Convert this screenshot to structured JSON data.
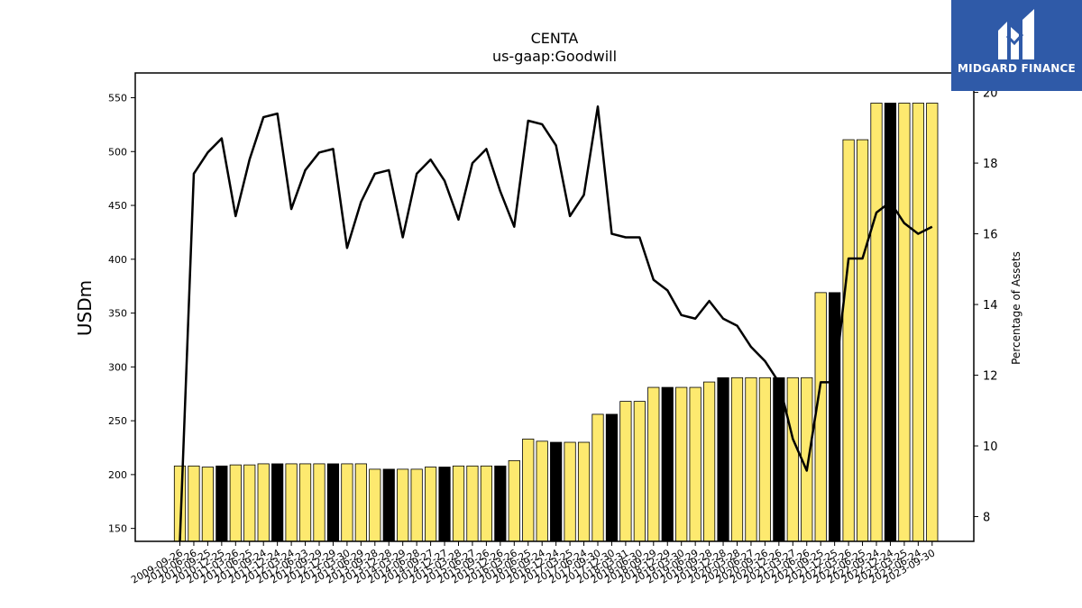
{
  "logo": {
    "text": "MIDGARD FINANCE",
    "icon": "midgard-logo-icon",
    "bg": "#2f5aa8"
  },
  "chart_data": {
    "type": "bar",
    "title": "CENTA",
    "subtitle": "us-gaap:Goodwill",
    "ylabel": "USDm",
    "y2label": "Percentage of Assets",
    "ylim": [
      138,
      573
    ],
    "y2lim": [
      7.3,
      20.55
    ],
    "yticks": [
      150,
      200,
      250,
      300,
      350,
      400,
      450,
      500,
      550
    ],
    "y2ticks": [
      8,
      10,
      12,
      14,
      16,
      18,
      20
    ],
    "bar_colors": {
      "normal": "#fde96f",
      "highlight": "#000000"
    },
    "categories": [
      "2009-09-26",
      "2010-06-26",
      "2010-09-25",
      "2010-12-25",
      "2011-03-26",
      "2011-06-25",
      "2011-09-24",
      "2011-12-24",
      "2012-03-24",
      "2012-06-23",
      "2012-09-29",
      "2012-12-29",
      "2013-03-30",
      "2013-06-29",
      "2013-09-28",
      "2013-12-28",
      "2014-03-29",
      "2014-06-28",
      "2014-09-27",
      "2014-12-27",
      "2015-03-28",
      "2015-06-27",
      "2015-09-26",
      "2015-12-26",
      "2016-03-26",
      "2016-06-25",
      "2016-09-24",
      "2016-12-24",
      "2017-03-25",
      "2017-06-24",
      "2017-09-30",
      "2017-12-30",
      "2018-03-31",
      "2018-06-30",
      "2018-09-29",
      "2018-12-29",
      "2019-03-30",
      "2019-06-29",
      "2019-09-28",
      "2019-12-28",
      "2020-03-28",
      "2020-06-27",
      "2020-09-26",
      "2020-12-26",
      "2021-03-27",
      "2021-06-26",
      "2021-09-25",
      "2021-12-25",
      "2022-03-26",
      "2022-06-25",
      "2022-09-24",
      "2022-12-24",
      "2023-03-25",
      "2023-06-24",
      "2023-09-30"
    ],
    "x_tick_labels": [
      "2009-09-26",
      "2010-06-26",
      "2010-09-25",
      "2010-12-25",
      "2011-03-26",
      "2011-06-25",
      "2011-09-24",
      "2011-12-24",
      "2012-03-24",
      "2012-06-23",
      "2012-09-29",
      "2012-12-29",
      "2013-03-30",
      "2013-06-29",
      "2013-09-28",
      "2013-12-28",
      "2014-03-29",
      "2014-06-28",
      "2014-09-27",
      "2014-12-27",
      "2015-03-28",
      "2015-06-27",
      "2015-09-26",
      "2015-12-26",
      "2016-03-26",
      "2016-06-25",
      "2016-09-24",
      "2016-12-24",
      "2017-03-25",
      "2017-06-24",
      "2017-09-30",
      "2017-12-30",
      "2018-03-31",
      "2018-06-30",
      "2018-09-29",
      "2018-12-29",
      "2019-03-30",
      "2019-06-29",
      "2019-09-28",
      "2019-12-28",
      "2020-03-28",
      "2020-06-27",
      "2020-09-26",
      "2020-12-26",
      "2021-03-27",
      "2021-06-26",
      "2021-09-25",
      "2021-12-25",
      "2022-03-26",
      "2022-06-25",
      "2022-09-24",
      "2022-12-24",
      "2023-03-25",
      "2023-06-24",
      "2023-09-30"
    ],
    "series": [
      {
        "type": "bar",
        "axis": "left",
        "values": [
          208,
          208,
          207,
          208,
          209,
          209,
          210,
          210,
          210,
          210,
          210,
          210,
          210,
          210,
          205,
          205,
          205,
          205,
          207,
          207,
          208,
          208,
          208,
          208,
          213,
          233,
          231,
          230,
          230,
          230,
          256,
          256,
          268,
          268,
          281,
          281,
          281,
          281,
          286,
          290,
          290,
          290,
          290,
          290,
          290,
          290,
          369,
          369,
          511,
          511,
          545,
          545,
          545,
          545,
          545
        ],
        "highlight": [
          false,
          false,
          false,
          true,
          false,
          false,
          false,
          true,
          false,
          false,
          false,
          true,
          false,
          false,
          false,
          true,
          false,
          false,
          false,
          true,
          false,
          false,
          false,
          true,
          false,
          false,
          false,
          true,
          false,
          false,
          false,
          true,
          false,
          false,
          false,
          true,
          false,
          false,
          false,
          true,
          false,
          false,
          false,
          true,
          false,
          false,
          false,
          true,
          false,
          false,
          false,
          true,
          false,
          false,
          false
        ]
      },
      {
        "type": "line",
        "axis": "right",
        "color": "#000000",
        "values": [
          4.6,
          17.7,
          18.3,
          18.7,
          16.5,
          18.1,
          19.3,
          19.4,
          16.7,
          17.8,
          18.3,
          18.4,
          15.6,
          16.9,
          17.7,
          17.8,
          15.9,
          17.7,
          18.1,
          17.5,
          16.4,
          18.0,
          18.4,
          17.2,
          16.2,
          19.2,
          19.1,
          18.5,
          16.5,
          17.1,
          19.6,
          16.0,
          15.9,
          15.9,
          14.7,
          14.4,
          13.7,
          13.6,
          14.1,
          13.6,
          13.4,
          12.8,
          12.4,
          11.8,
          10.2,
          9.3,
          11.8,
          11.8,
          15.3,
          15.3,
          16.6,
          16.9,
          16.3,
          16.0,
          16.2
        ]
      }
    ],
    "grid": false,
    "legend": "none"
  }
}
